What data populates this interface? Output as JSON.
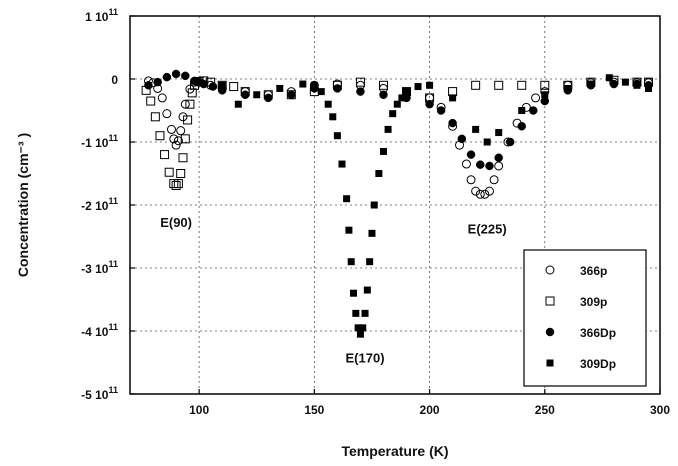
{
  "chart_data": {
    "type": "scatter",
    "xlabel": "Temperature (K)",
    "ylabel": "Concentration (cm⁻³ )",
    "xlim": [
      70,
      300
    ],
    "ylim": [
      -500000000000.0,
      100000000000.0
    ],
    "x_ticks": [
      100,
      150,
      200,
      250,
      300
    ],
    "y_ticks": [
      100000000000.0,
      0,
      -100000000000.0,
      -200000000000.0,
      -300000000000.0,
      -400000000000.0,
      -500000000000.0
    ],
    "x_tick_labels": [
      "100",
      "150",
      "200",
      "250",
      "300"
    ],
    "y_tick_labels": [
      {
        "mant": "1",
        "exp": "11"
      },
      {
        "mant": "0",
        "exp": ""
      },
      {
        "mant": "-1",
        "exp": "11"
      },
      {
        "mant": "-2",
        "exp": "11"
      },
      {
        "mant": "-3",
        "exp": "11"
      },
      {
        "mant": "-4",
        "exp": "11"
      },
      {
        "mant": "-5",
        "exp": "11"
      }
    ],
    "grid": true,
    "legend_position": "bottom-right",
    "series": [
      {
        "name": "366p",
        "marker": "open-circle",
        "x": [
          78,
          80,
          82,
          84,
          86,
          88,
          89,
          90,
          91,
          92,
          93,
          94,
          96,
          98,
          100,
          105,
          110,
          120,
          130,
          140,
          150,
          160,
          170,
          180,
          190,
          200,
          205,
          210,
          213,
          216,
          218,
          220,
          222,
          224,
          226,
          228,
          230,
          234,
          238,
          242,
          246,
          250,
          260,
          270,
          280,
          290,
          295
        ],
        "y": [
          -3000000000.0,
          -6000000000.0,
          -15000000000.0,
          -30000000000.0,
          -55000000000.0,
          -80000000000.0,
          -95000000000.0,
          -105000000000.0,
          -98000000000.0,
          -82000000000.0,
          -60000000000.0,
          -40000000000.0,
          -16000000000.0,
          -5000000000.0,
          -5000000000.0,
          -10000000000.0,
          -15000000000.0,
          -20000000000.0,
          -25000000000.0,
          -20000000000.0,
          -10000000000.0,
          -8000000000.0,
          -10000000000.0,
          -15000000000.0,
          -20000000000.0,
          -30000000000.0,
          -45000000000.0,
          -75000000000.0,
          -105000000000.0,
          -135000000000.0,
          -160000000000.0,
          -178000000000.0,
          -183000000000.0,
          -183000000000.0,
          -178000000000.0,
          -160000000000.0,
          -138000000000.0,
          -100000000000.0,
          -70000000000.0,
          -45000000000.0,
          -30000000000.0,
          -20000000000.0,
          -10000000000.0,
          -6000000000.0,
          -5000000000.0,
          -6000000000.0,
          -6000000000.0
        ]
      },
      {
        "name": "309p",
        "marker": "open-square",
        "x": [
          77,
          79,
          81,
          83,
          85,
          87,
          89,
          90,
          91,
          92,
          93,
          94,
          95,
          96,
          97,
          98,
          100,
          102,
          105,
          110,
          115,
          120,
          130,
          140,
          150,
          160,
          170,
          180,
          190,
          200,
          210,
          220,
          230,
          240,
          250,
          260,
          270,
          280,
          290,
          295
        ],
        "y": [
          -18000000000.0,
          -35000000000.0,
          -60000000000.0,
          -90000000000.0,
          -120000000000.0,
          -148000000000.0,
          -166000000000.0,
          -169000000000.0,
          -166000000000.0,
          -150000000000.0,
          -125000000000.0,
          -95000000000.0,
          -65000000000.0,
          -40000000000.0,
          -22000000000.0,
          -10000000000.0,
          -4000000000.0,
          -3000000000.0,
          -5000000000.0,
          -10000000000.0,
          -12000000000.0,
          -20000000000.0,
          -25000000000.0,
          -25000000000.0,
          -20000000000.0,
          -10000000000.0,
          -5000000000.0,
          -10000000000.0,
          -20000000000.0,
          -30000000000.0,
          -20000000000.0,
          -10000000000.0,
          -10000000000.0,
          -10000000000.0,
          -10000000000.0,
          -10000000000.0,
          -5000000000.0,
          -2000000000.0,
          -5000000000.0,
          -5000000000.0
        ]
      },
      {
        "name": "366Dp",
        "marker": "filled-circle",
        "x": [
          78,
          82,
          86,
          90,
          94,
          98,
          102,
          106,
          110,
          120,
          130,
          140,
          150,
          160,
          170,
          180,
          190,
          200,
          205,
          210,
          214,
          218,
          222,
          226,
          230,
          235,
          240,
          245,
          250,
          260,
          270,
          280,
          290,
          295
        ],
        "y": [
          -10000000000.0,
          -5000000000.0,
          3000000000.0,
          8000000000.0,
          5000000000.0,
          -3000000000.0,
          -8000000000.0,
          -12000000000.0,
          -18000000000.0,
          -25000000000.0,
          -30000000000.0,
          -25000000000.0,
          -15000000000.0,
          -15000000000.0,
          -20000000000.0,
          -25000000000.0,
          -30000000000.0,
          -40000000000.0,
          -50000000000.0,
          -70000000000.0,
          -95000000000.0,
          -120000000000.0,
          -136000000000.0,
          -138000000000.0,
          -125000000000.0,
          -100000000000.0,
          -75000000000.0,
          -50000000000.0,
          -35000000000.0,
          -18000000000.0,
          -10000000000.0,
          -8000000000.0,
          -8000000000.0,
          -10000000000.0
        ]
      },
      {
        "name": "309Dp",
        "marker": "filled-square",
        "x": [
          100,
          110,
          117,
          125,
          135,
          145,
          150,
          153,
          156,
          158,
          160,
          162,
          164,
          165,
          166,
          167,
          168,
          169,
          170,
          171,
          172,
          173,
          174,
          175,
          176,
          178,
          180,
          182,
          184,
          186,
          188,
          190,
          195,
          200,
          210,
          220,
          225,
          230,
          240,
          250,
          260,
          270,
          278,
          285,
          290,
          295
        ],
        "y": [
          -5000000000.0,
          -10000000000.0,
          -40000000000.0,
          -25000000000.0,
          -15000000000.0,
          -8000000000.0,
          -10000000000.0,
          -20000000000.0,
          -40000000000.0,
          -60000000000.0,
          -90000000000.0,
          -135000000000.0,
          -190000000000.0,
          -240000000000.0,
          -290000000000.0,
          -340000000000.0,
          -372000000000.0,
          -395000000000.0,
          -405000000000.0,
          -395000000000.0,
          -372000000000.0,
          -335000000000.0,
          -290000000000.0,
          -245000000000.0,
          -200000000000.0,
          -150000000000.0,
          -115000000000.0,
          -80000000000.0,
          -55000000000.0,
          -40000000000.0,
          -30000000000.0,
          -20000000000.0,
          -12000000000.0,
          -10000000000.0,
          -30000000000.0,
          -80000000000.0,
          -100000000000.0,
          -85000000000.0,
          -50000000000.0,
          -25000000000.0,
          -15000000000.0,
          -8000000000.0,
          2000000000.0,
          -5000000000.0,
          -10000000000.0,
          -15000000000.0
        ]
      }
    ],
    "annotations": [
      {
        "text": "E(90)",
        "x": 90,
        "y": -235000000000.0
      },
      {
        "text": "E(170)",
        "x": 172,
        "y": -450000000000.0
      },
      {
        "text": "E(225)",
        "x": 225,
        "y": -245000000000.0
      }
    ]
  }
}
